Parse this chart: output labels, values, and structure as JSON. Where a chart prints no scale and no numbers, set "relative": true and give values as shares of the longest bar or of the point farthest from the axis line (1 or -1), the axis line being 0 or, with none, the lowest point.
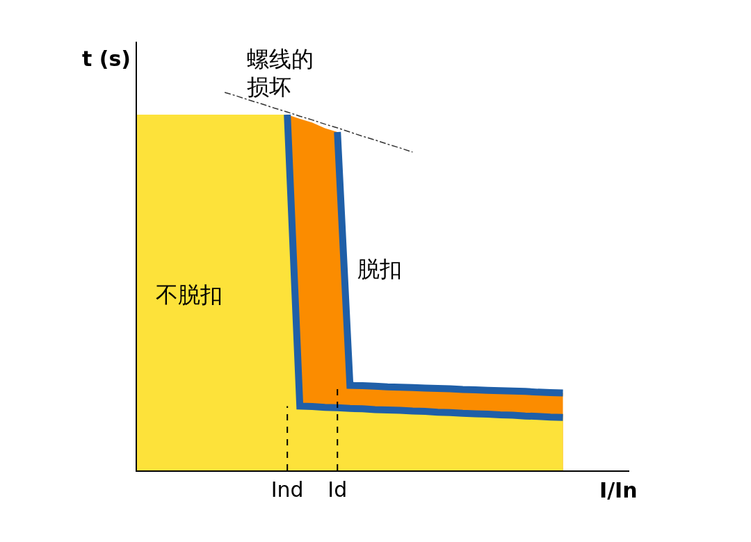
{
  "chart_data": {
    "type": "area",
    "relative": true,
    "xlabel": "I/In",
    "ylabel": "t (s)",
    "categories": [
      null,
      null,
      null,
      null,
      null,
      null,
      null,
      null,
      null,
      null,
      null,
      null,
      "Ind",
      null,
      null,
      null,
      "Id",
      null,
      null,
      null,
      null,
      null,
      null,
      null,
      null,
      null,
      null,
      null,
      null,
      null,
      null,
      null,
      null,
      null,
      null,
      null,
      null,
      null,
      null,
      null
    ],
    "series": [
      {
        "color": "#fb8c00",
        "values": [
          null,
          null,
          null,
          null,
          null,
          null,
          null,
          null,
          null,
          null,
          null,
          null,
          0.941,
          0.93,
          0.92,
          0.905,
          0.895,
          0.225,
          0.224,
          0.223,
          0.221,
          0.22,
          0.219,
          0.218,
          0.217,
          0.216,
          0.214,
          0.213,
          0.212,
          0.211,
          0.21,
          0.209,
          0.207,
          0.206,
          0.205,
          null,
          null,
          null,
          null,
          null
        ]
      },
      {
        "color": "#fde23a",
        "values": [
          0.941,
          0.941,
          0.941,
          0.941,
          0.941,
          0.941,
          0.941,
          0.941,
          0.941,
          0.941,
          0.941,
          0.941,
          0.941,
          0.17,
          0.169,
          0.167,
          0.166,
          0.164,
          0.163,
          0.161,
          0.16,
          0.159,
          0.157,
          0.156,
          0.154,
          0.153,
          0.151,
          0.15,
          0.149,
          0.147,
          0.146,
          0.144,
          0.143,
          0.141,
          0.14,
          null,
          null,
          null,
          null,
          null
        ]
      },
      {
        "type": "line",
        "color": "#1f5fa8",
        "values": [
          null,
          null,
          null,
          null,
          null,
          null,
          null,
          null,
          null,
          null,
          null,
          null,
          0.941,
          0.17,
          0.169,
          0.167,
          0.166,
          0.164,
          0.163,
          0.161,
          0.16,
          0.159,
          0.157,
          0.156,
          0.154,
          0.153,
          0.151,
          0.15,
          0.149,
          0.147,
          0.146,
          0.144,
          0.143,
          0.141,
          0.14,
          null,
          null,
          null,
          null,
          null
        ]
      },
      {
        "type": "line",
        "color": "#1f5fa8",
        "values": [
          null,
          null,
          null,
          null,
          null,
          null,
          null,
          null,
          null,
          null,
          null,
          null,
          null,
          null,
          null,
          null,
          0.895,
          0.225,
          0.224,
          0.223,
          0.221,
          0.22,
          0.219,
          0.218,
          0.217,
          0.216,
          0.214,
          0.213,
          0.212,
          0.211,
          0.21,
          0.209,
          0.207,
          0.206,
          0.205,
          null,
          null,
          null,
          null,
          null
        ]
      },
      {
        "type": "line",
        "color": "#333333",
        "line_style": "dashed",
        "values": [
          null,
          null,
          null,
          null,
          null,
          null,
          null,
          1.0,
          0.99,
          0.979,
          0.969,
          0.958,
          0.948,
          0.937,
          0.927,
          0.916,
          0.906,
          0.895,
          0.884,
          0.874,
          0.863,
          0.853,
          0.842,
          null,
          null,
          null,
          null,
          null,
          null,
          null,
          null,
          null,
          null,
          null,
          null,
          null,
          null,
          null,
          null,
          null
        ]
      }
    ],
    "ref_lines": [
      {
        "axis": "x",
        "value": "Ind",
        "line_style": "dashed",
        "color": "#000000"
      },
      {
        "axis": "x",
        "value": "Id",
        "line_style": "dashed",
        "color": "#000000"
      }
    ],
    "annotations": [
      "螺线的",
      "损坏",
      "不脱扣",
      "脱扣"
    ]
  }
}
